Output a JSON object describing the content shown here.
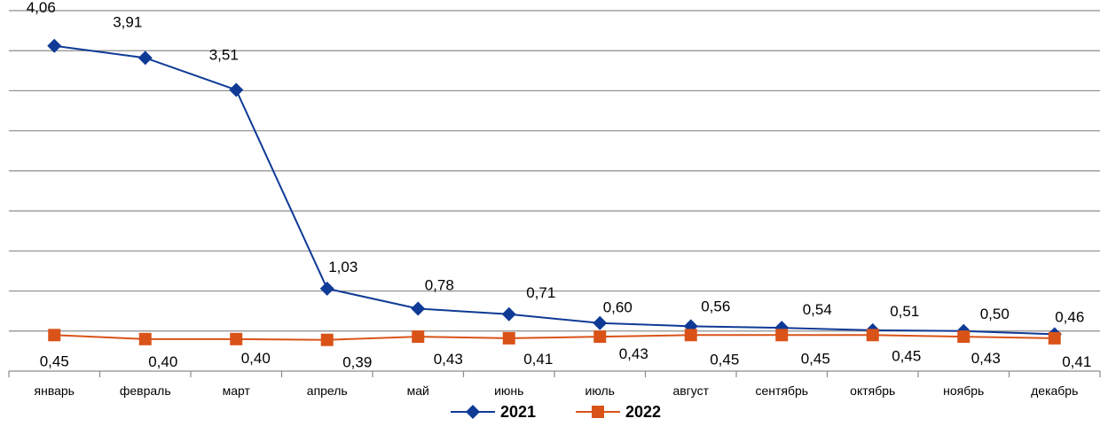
{
  "chart_data": {
    "type": "line",
    "title": "",
    "xlabel": "",
    "ylabel": "",
    "categories": [
      "январь",
      "февраль",
      "март",
      "апрель",
      "май",
      "июнь",
      "июль",
      "август",
      "сентябрь",
      "октябрь",
      "ноябрь",
      "декабрь"
    ],
    "ylim": [
      0,
      4.5
    ],
    "grid": true,
    "legend_position": "bottom",
    "series": [
      {
        "name": "2021",
        "marker": "diamond",
        "color": "#0f3a96",
        "values": [
          4.06,
          3.91,
          3.51,
          1.03,
          0.78,
          0.71,
          0.6,
          0.56,
          0.54,
          0.51,
          0.5,
          0.46
        ],
        "labels": [
          "4,06",
          "3,91",
          "3,51",
          "1,03",
          "0,78",
          "0,71",
          "0,60",
          "0,56",
          "0,54",
          "0,51",
          "0,50",
          "0,46"
        ]
      },
      {
        "name": "2022",
        "marker": "square",
        "color": "#d95319",
        "values": [
          0.45,
          0.4,
          0.4,
          0.39,
          0.43,
          0.41,
          0.43,
          0.45,
          0.45,
          0.45,
          0.43,
          0.41
        ],
        "labels": [
          "0,45",
          "0,40",
          "0,40",
          "0,39",
          "0,43",
          "0,41",
          "0,43",
          "0,45",
          "0,45",
          "0,45",
          "0,43",
          "0,41"
        ]
      }
    ]
  }
}
